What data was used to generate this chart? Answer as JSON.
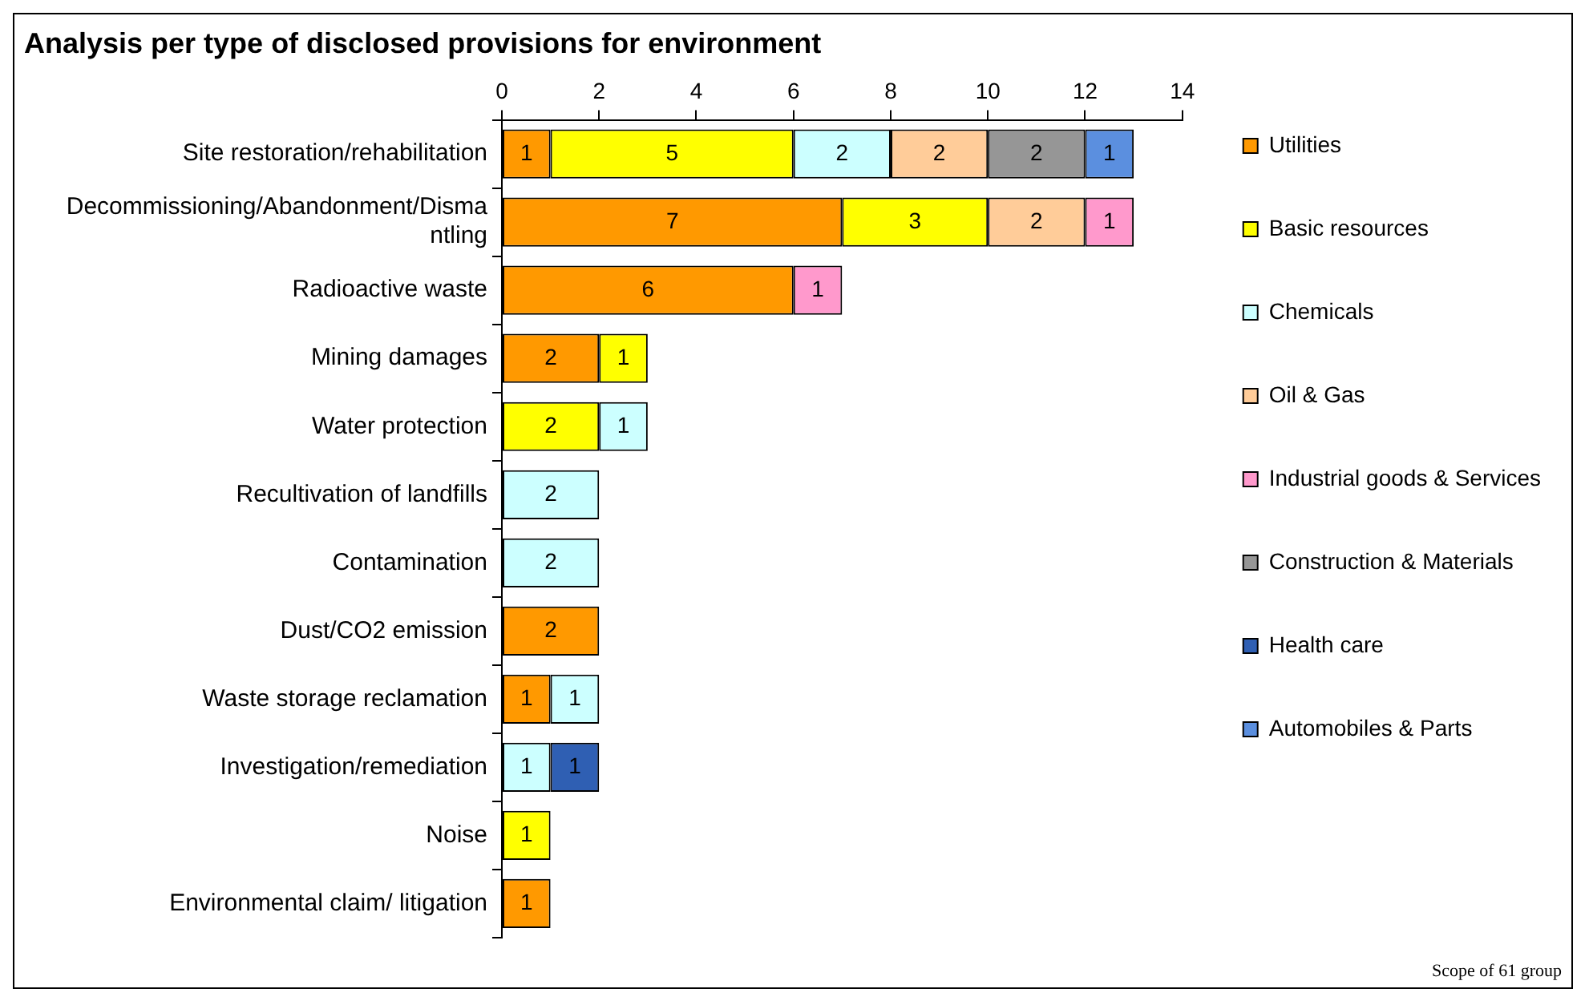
{
  "chart_data": {
    "type": "bar",
    "orientation": "horizontal",
    "stacked": true,
    "title": "Analysis per type of disclosed provisions for environment",
    "categories": [
      "Site restoration/rehabilitation",
      "Decommissioning/Abandonment/Dismantling",
      "Radioactive waste",
      "Mining damages",
      "Water protection",
      "Recultivation of landfills",
      "Contamination",
      "Dust/CO2 emission",
      "Waste storage reclamation",
      "Investigation/remediation",
      "Noise",
      "Environmental claim/ litigation"
    ],
    "series": [
      {
        "name": "Utilities",
        "color": "#ff9900",
        "values": [
          1,
          7,
          6,
          2,
          null,
          null,
          null,
          2,
          1,
          null,
          null,
          1
        ]
      },
      {
        "name": "Basic resources",
        "color": "#ffff00",
        "values": [
          5,
          3,
          null,
          1,
          2,
          null,
          null,
          null,
          null,
          null,
          1,
          null
        ]
      },
      {
        "name": "Chemicals",
        "color": "#ccffff",
        "values": [
          2,
          null,
          null,
          null,
          1,
          2,
          2,
          null,
          1,
          1,
          null,
          null
        ]
      },
      {
        "name": "Oil & Gas",
        "color": "#ffcc99",
        "values": [
          2,
          2,
          null,
          null,
          null,
          null,
          null,
          null,
          null,
          null,
          null,
          null
        ]
      },
      {
        "name": "Industrial goods & Services",
        "color": "#ff99cc",
        "values": [
          null,
          1,
          1,
          null,
          null,
          null,
          null,
          null,
          null,
          null,
          null,
          null
        ]
      },
      {
        "name": "Construction & Materials",
        "color": "#969696",
        "values": [
          2,
          null,
          null,
          null,
          null,
          null,
          null,
          null,
          null,
          null,
          null,
          null
        ]
      },
      {
        "name": "Health care",
        "color": "#2f5fb3",
        "values": [
          null,
          null,
          null,
          null,
          null,
          null,
          null,
          null,
          null,
          1,
          null,
          null
        ]
      },
      {
        "name": "Automobiles & Parts",
        "color": "#5b8fdf",
        "values": [
          1,
          null,
          null,
          null,
          null,
          null,
          null,
          null,
          null,
          null,
          null,
          null
        ]
      }
    ],
    "xlim": [
      0,
      14
    ],
    "xticks": [
      0,
      2,
      4,
      6,
      8,
      10,
      12,
      14
    ],
    "grid": false,
    "legend": "right",
    "data_labels": true,
    "annotations": [
      "Scope of 61 group"
    ]
  }
}
